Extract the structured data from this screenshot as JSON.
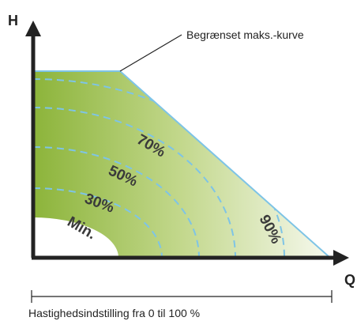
{
  "axes": {
    "h": "H",
    "q": "Q"
  },
  "max_curve_label": "Begrænset maks.-kurve",
  "curve_labels": [
    "70%",
    "50%",
    "30%",
    "Min.",
    "90%"
  ],
  "range_label": "Hastighedsindstilling fra 0 til 100 %"
}
